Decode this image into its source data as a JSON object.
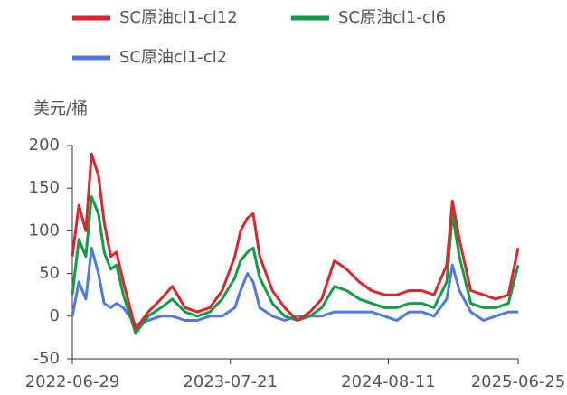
{
  "chart_data": {
    "type": "line",
    "y_unit": "美元/桶",
    "x": [
      "2022-06-29",
      "2022-07-15",
      "2022-08-01",
      "2022-08-15",
      "2022-09-01",
      "2022-09-15",
      "2022-10-01",
      "2022-10-15",
      "2022-11-01",
      "2022-12-01",
      "2023-01-01",
      "2023-02-01",
      "2023-03-01",
      "2023-04-01",
      "2023-05-01",
      "2023-06-01",
      "2023-07-01",
      "2023-08-01",
      "2023-08-15",
      "2023-09-01",
      "2023-09-15",
      "2023-10-01",
      "2023-11-01",
      "2023-12-01",
      "2024-01-01",
      "2024-02-01",
      "2024-03-01",
      "2024-04-01",
      "2024-05-01",
      "2024-06-01",
      "2024-07-01",
      "2024-08-01",
      "2024-09-01",
      "2024-10-01",
      "2024-11-01",
      "2024-12-01",
      "2025-01-01",
      "2025-01-15",
      "2025-02-01",
      "2025-03-01",
      "2025-04-01",
      "2025-05-01",
      "2025-06-01",
      "2025-06-25"
    ],
    "series": [
      {
        "name": "SC原油cl1-cl12",
        "color": "#e0242b",
        "values": [
          70,
          130,
          100,
          190,
          165,
          110,
          70,
          75,
          40,
          -15,
          5,
          20,
          35,
          10,
          5,
          10,
          30,
          70,
          100,
          115,
          120,
          70,
          30,
          10,
          -5,
          5,
          20,
          65,
          55,
          40,
          30,
          25,
          25,
          30,
          30,
          25,
          60,
          135,
          90,
          30,
          25,
          20,
          25,
          80
        ]
      },
      {
        "name": "SC原油cl1-cl6",
        "color": "#0e9e45",
        "values": [
          25,
          90,
          70,
          140,
          120,
          75,
          55,
          60,
          25,
          -20,
          0,
          10,
          20,
          5,
          0,
          5,
          20,
          45,
          65,
          75,
          80,
          45,
          15,
          0,
          -5,
          0,
          10,
          35,
          30,
          20,
          15,
          10,
          10,
          15,
          15,
          10,
          40,
          120,
          70,
          15,
          10,
          10,
          15,
          60
        ]
      },
      {
        "name": "SC原油cl1-cl2",
        "color": "#4e79e5",
        "values": [
          0,
          40,
          20,
          80,
          50,
          15,
          10,
          15,
          10,
          -10,
          -5,
          0,
          0,
          -5,
          -5,
          0,
          0,
          10,
          30,
          50,
          40,
          10,
          0,
          -5,
          0,
          0,
          0,
          5,
          5,
          5,
          5,
          0,
          -5,
          5,
          5,
          0,
          20,
          60,
          30,
          5,
          -5,
          0,
          5,
          5
        ]
      }
    ],
    "xlim": [
      "2022-06-29",
      "2025-06-25"
    ],
    "xticks": [
      "2022-06-29",
      "2023-07-21",
      "2024-08-11",
      "2025-06-25"
    ],
    "ylim": [
      -50,
      200
    ],
    "yticks": [
      -50,
      0,
      50,
      100,
      150,
      200
    ]
  }
}
